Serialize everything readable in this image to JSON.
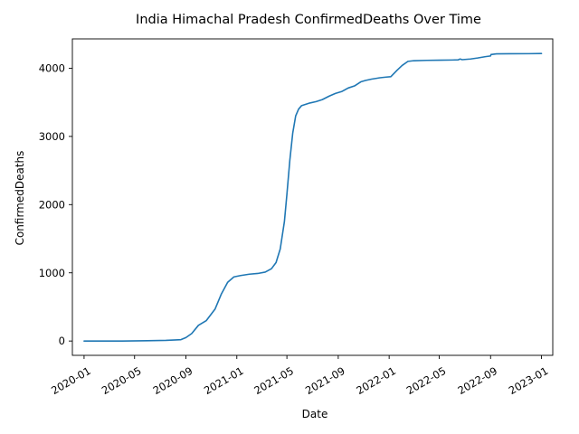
{
  "chart_data": {
    "type": "line",
    "title": "India Himachal Pradesh ConfirmedDeaths Over Time",
    "xlabel": "Date",
    "ylabel": "ConfirmedDeaths",
    "xlim": [
      "2019-12-04",
      "2023-01-28"
    ],
    "ylim": [
      -210,
      4430
    ],
    "x_ticks": [
      "2020-01",
      "2020-05",
      "2020-09",
      "2021-01",
      "2021-05",
      "2021-09",
      "2022-01",
      "2022-05",
      "2022-09",
      "2023-01"
    ],
    "y_ticks": [
      0,
      1000,
      2000,
      3000,
      4000
    ],
    "grid": false,
    "legend": "none",
    "color": "#1f77b4",
    "series": [
      {
        "x": [
          "2020-01-01",
          "2020-04-01",
          "2020-06-01",
          "2020-07-15",
          "2020-08-20",
          "2020-09-01",
          "2020-09-15",
          "2020-10-01",
          "2020-10-20",
          "2020-11-10",
          "2020-11-25",
          "2020-12-10",
          "2020-12-25",
          "2021-01-10",
          "2021-01-31",
          "2021-02-20",
          "2021-03-10",
          "2021-03-25",
          "2021-04-05",
          "2021-04-15",
          "2021-04-25",
          "2021-05-01",
          "2021-05-08",
          "2021-05-15",
          "2021-05-22",
          "2021-05-29",
          "2021-06-05",
          "2021-06-15",
          "2021-06-25",
          "2021-07-10",
          "2021-07-25",
          "2021-08-10",
          "2021-08-25",
          "2021-09-10",
          "2021-09-25",
          "2021-10-10",
          "2021-10-25",
          "2021-11-05",
          "2021-11-20",
          "2021-12-10",
          "2021-12-25",
          "2022-01-05",
          "2022-01-20",
          "2022-02-01",
          "2022-02-15",
          "2022-03-01",
          "2022-04-01",
          "2022-05-01",
          "2022-06-01",
          "2022-06-15",
          "2022-06-20",
          "2022-06-25",
          "2022-07-15",
          "2022-08-01",
          "2022-08-20",
          "2022-09-01",
          "2022-09-02",
          "2022-09-15",
          "2022-10-15",
          "2022-12-01",
          "2023-01-01"
        ],
        "y": [
          0,
          0,
          5,
          10,
          20,
          50,
          110,
          230,
          300,
          470,
          690,
          860,
          940,
          960,
          980,
          990,
          1010,
          1060,
          1150,
          1350,
          1750,
          2150,
          2650,
          3050,
          3300,
          3400,
          3450,
          3470,
          3490,
          3510,
          3540,
          3590,
          3630,
          3660,
          3710,
          3740,
          3800,
          3820,
          3840,
          3860,
          3870,
          3875,
          3970,
          4040,
          4100,
          4110,
          4115,
          4118,
          4120,
          4122,
          4135,
          4125,
          4135,
          4150,
          4170,
          4180,
          4200,
          4210,
          4212,
          4213,
          4215
        ]
      }
    ]
  }
}
